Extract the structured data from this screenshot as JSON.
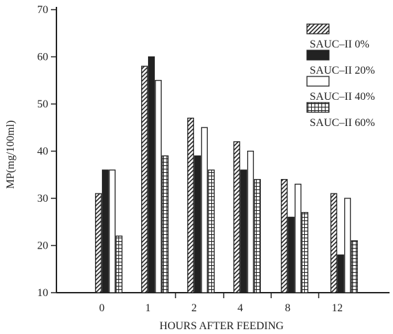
{
  "chart_data": {
    "type": "bar",
    "xlabel": "HOURS AFTER FEEDING",
    "ylabel": "MP(mg/100ml)",
    "ylim": [
      10,
      70
    ],
    "yticks": [
      10,
      20,
      30,
      40,
      50,
      60,
      70
    ],
    "categories": [
      "0",
      "1",
      "2",
      "4",
      "8",
      "12"
    ],
    "series": [
      {
        "name": "SAUC–II 0%",
        "values": [
          31,
          58,
          47,
          42,
          34,
          31
        ]
      },
      {
        "name": "SAUC–II 20%",
        "values": [
          36,
          60,
          39,
          36,
          26,
          18
        ]
      },
      {
        "name": "SAUC–II 40%",
        "values": [
          36,
          55,
          45,
          40,
          33,
          30
        ]
      },
      {
        "name": "SAUC–II 60%",
        "values": [
          22,
          39,
          36,
          34,
          27,
          21
        ]
      }
    ],
    "legend_position": "top-right",
    "grid": false
  },
  "colors": {
    "ink": "#222222",
    "background": "#ffffff"
  }
}
